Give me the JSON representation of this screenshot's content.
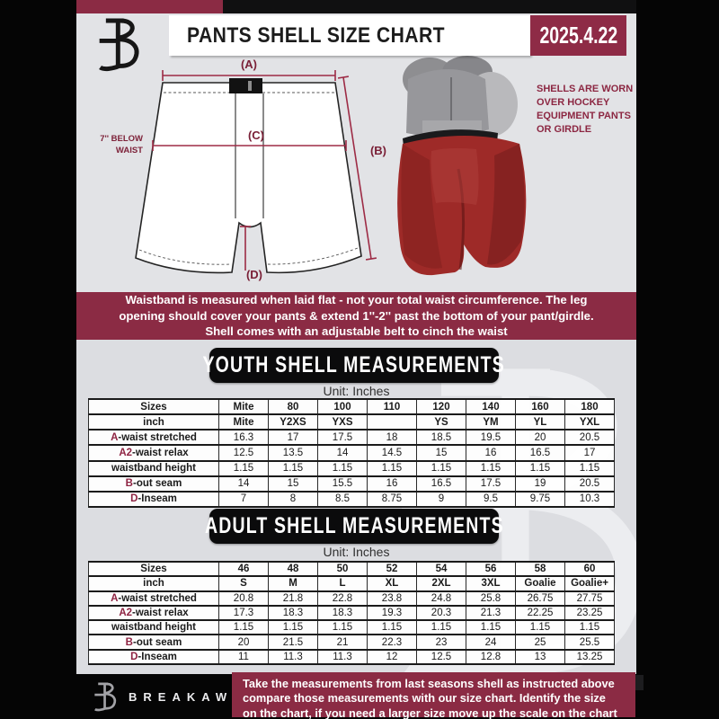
{
  "header": {
    "title": "PANTS SHELL SIZE CHART",
    "date": "2025.4.22"
  },
  "diagram": {
    "label_a": "(A)",
    "label_b": "(B)",
    "label_c": "(C)",
    "label_d": "(D)",
    "waist_note_line1": "7'' BELOW",
    "waist_note_line2": "WAIST",
    "side_note": "SHELLS ARE WORN\nOVER HOCKEY\nEQUIPMENT PANTS\nOR GIRDLE"
  },
  "notice": {
    "text": "Waistband is measured when laid flat - not your total waist circumference. The leg\nopening should cover your pants & extend 1''-2'' past the bottom of your pant/girdle.\nShell comes with an adjustable belt to cinch the waist"
  },
  "youth": {
    "banner": "YOUTH SHELL MEASUREMENTS",
    "unit": "Unit: Inches",
    "table": {
      "header_row": {
        "label": "Sizes",
        "values": [
          "Mite",
          "80",
          "100",
          "110",
          "120",
          "140",
          "160",
          "180"
        ]
      },
      "subheader_row": {
        "label": "inch",
        "values": [
          "Mite",
          "Y2XS",
          "YXS",
          "",
          "YS",
          "YM",
          "YL",
          "YXL"
        ]
      },
      "rows": [
        {
          "accent": "A",
          "label": "-waist stretched",
          "values": [
            "16.3",
            "17",
            "17.5",
            "18",
            "18.5",
            "19.5",
            "20",
            "20.5"
          ]
        },
        {
          "accent": "A2",
          "label": "-waist relax",
          "values": [
            "12.5",
            "13.5",
            "14",
            "14.5",
            "15",
            "16",
            "16.5",
            "17"
          ]
        },
        {
          "accent": "",
          "label": "waistband height",
          "values": [
            "1.15",
            "1.15",
            "1.15",
            "1.15",
            "1.15",
            "1.15",
            "1.15",
            "1.15"
          ]
        },
        {
          "accent": "B",
          "label": "-out seam",
          "values": [
            "14",
            "15",
            "15.5",
            "16",
            "16.5",
            "17.5",
            "19",
            "20.5"
          ]
        },
        {
          "accent": "D",
          "label": "-Inseam",
          "values": [
            "7",
            "8",
            "8.5",
            "8.75",
            "9",
            "9.5",
            "9.75",
            "10.3"
          ]
        }
      ]
    }
  },
  "adult": {
    "banner": "ADULT SHELL MEASUREMENTS",
    "unit": "Unit: Inches",
    "table": {
      "header_row": {
        "label": "Sizes",
        "values": [
          "46",
          "48",
          "50",
          "52",
          "54",
          "56",
          "58",
          "60"
        ]
      },
      "subheader_row": {
        "label": "inch",
        "values": [
          "S",
          "M",
          "L",
          "XL",
          "2XL",
          "3XL",
          "Goalie",
          "Goalie+"
        ]
      },
      "rows": [
        {
          "accent": "A",
          "label": "-waist stretched",
          "values": [
            "20.8",
            "21.8",
            "22.8",
            "23.8",
            "24.8",
            "25.8",
            "26.75",
            "27.75"
          ]
        },
        {
          "accent": "A2",
          "label": "-waist relax",
          "values": [
            "17.3",
            "18.3",
            "18.3",
            "19.3",
            "20.3",
            "21.3",
            "22.25",
            "23.25"
          ]
        },
        {
          "accent": "",
          "label": "waistband height",
          "values": [
            "1.15",
            "1.15",
            "1.15",
            "1.15",
            "1.15",
            "1.15",
            "1.15",
            "1.15"
          ]
        },
        {
          "accent": "B",
          "label": "-out seam",
          "values": [
            "20",
            "21.5",
            "21",
            "22.3",
            "23",
            "24",
            "25",
            "25.5"
          ]
        },
        {
          "accent": "D",
          "label": "-Inseam",
          "values": [
            "11",
            "11.3",
            "11.3",
            "12",
            "12.5",
            "12.8",
            "13",
            "13.25"
          ]
        }
      ]
    }
  },
  "footer": {
    "brand": "BREAKAWAY",
    "note": "Take the measurements from last seasons shell as instructed above\ncompare those measurements with our size chart. Identify the size\non the chart, if you need a larger size move up the scale on the chart"
  },
  "colors": {
    "maroon": "#8b2b44",
    "accent_red": "#8e2342",
    "panel_gray": "#e2e3e6",
    "banner_black": "#0b0b0c",
    "measure_line": "#9d2b45",
    "shell_red": "#9e2a28"
  }
}
